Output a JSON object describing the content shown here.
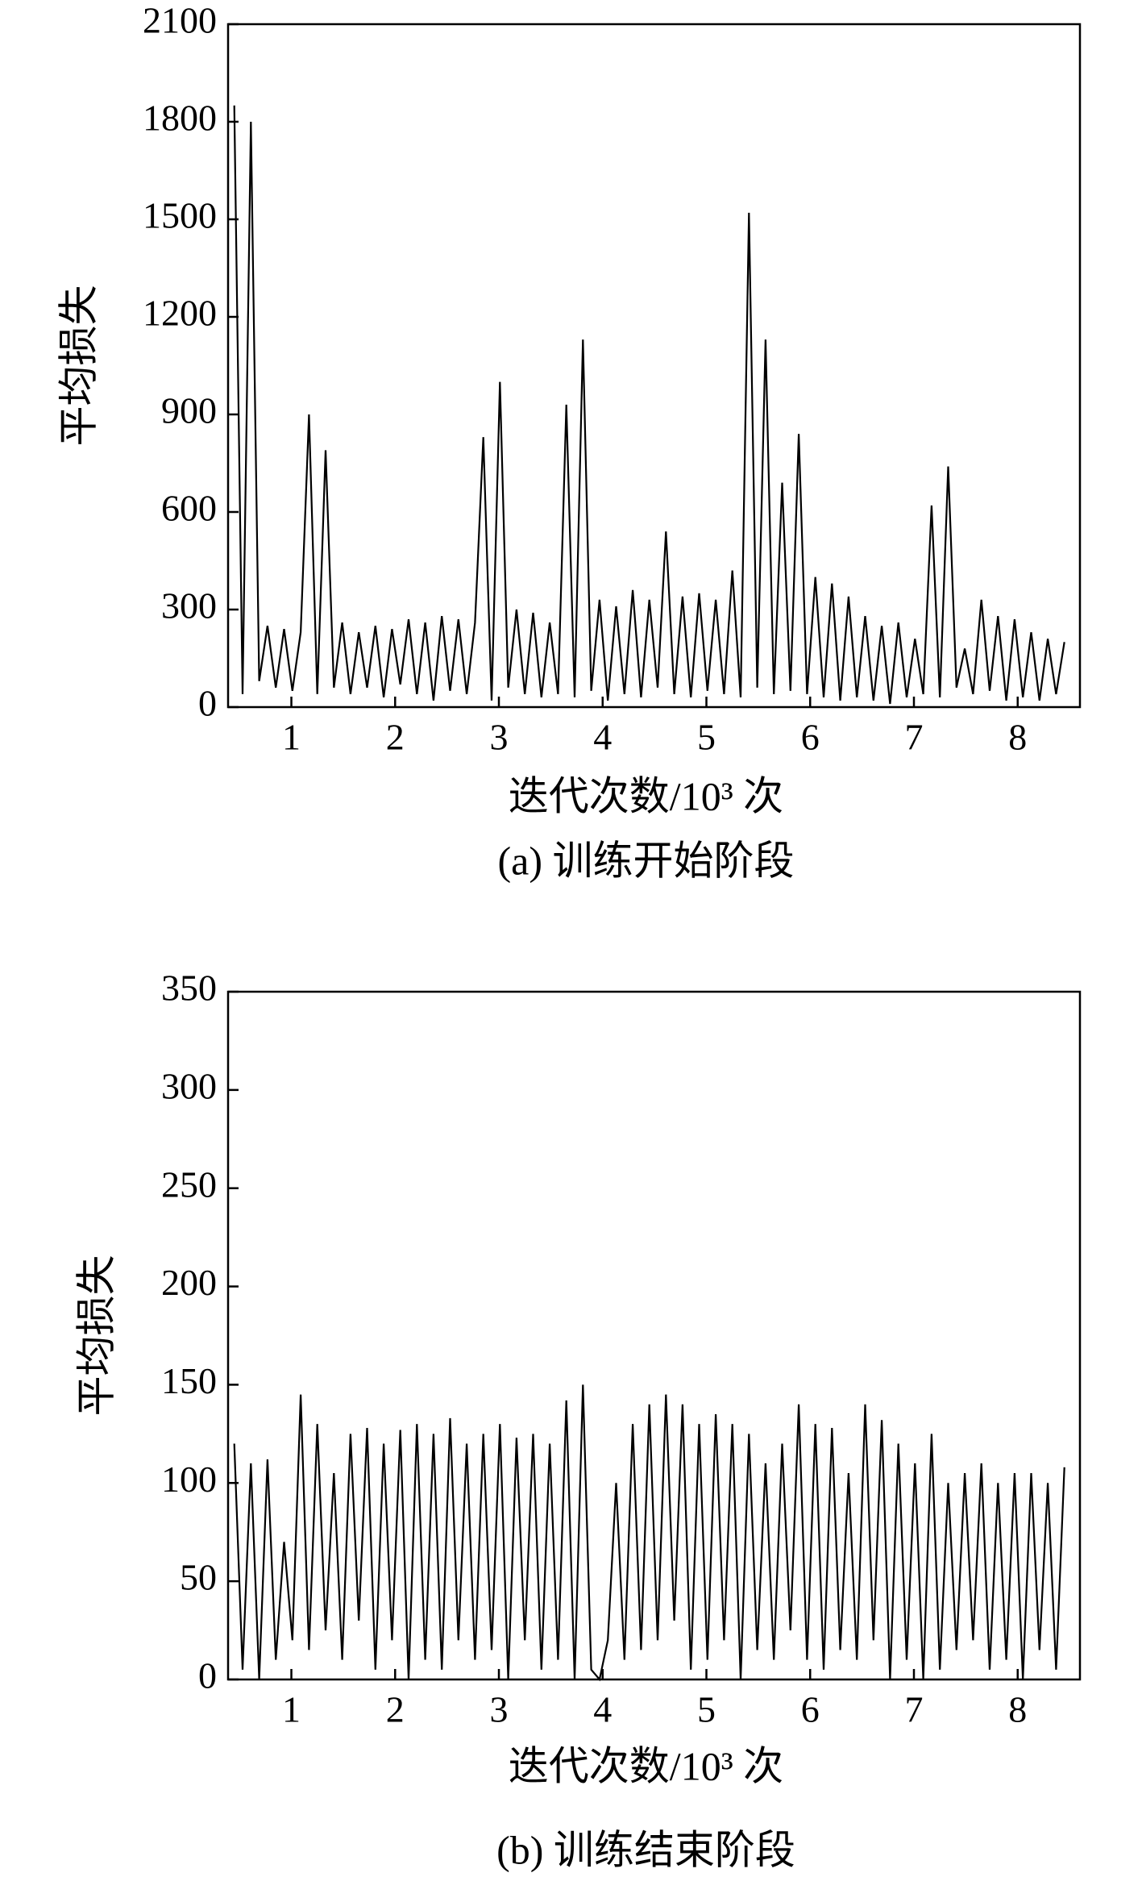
{
  "chart_data": [
    {
      "type": "line",
      "caption": "(a) 训练开始阶段",
      "xlabel": "迭代次数/10³ 次",
      "ylabel": "平均损失",
      "xlim": [
        0.39,
        8.6
      ],
      "xticks": [
        1,
        2,
        3,
        4,
        5,
        6,
        7,
        8
      ],
      "ylim": [
        0,
        2100
      ],
      "yticks": [
        0,
        300,
        600,
        900,
        1200,
        1500,
        1800,
        2100
      ],
      "series": [
        {
          "name": null,
          "color": "#000000",
          "x": [
            0.45,
            0.53,
            0.61,
            0.69,
            0.77,
            0.85,
            0.93,
            1.01,
            1.09,
            1.17,
            1.25,
            1.33,
            1.41,
            1.49,
            1.57,
            1.65,
            1.73,
            1.81,
            1.89,
            1.97,
            2.05,
            2.13,
            2.21,
            2.29,
            2.37,
            2.45,
            2.53,
            2.61,
            2.69,
            2.77,
            2.85,
            2.93,
            3.01,
            3.09,
            3.17,
            3.25,
            3.33,
            3.41,
            3.49,
            3.57,
            3.65,
            3.73,
            3.81,
            3.89,
            3.97,
            4.05,
            4.13,
            4.21,
            4.29,
            4.37,
            4.45,
            4.53,
            4.61,
            4.69,
            4.77,
            4.85,
            4.93,
            5.01,
            5.09,
            5.17,
            5.25,
            5.33,
            5.41,
            5.49,
            5.57,
            5.65,
            5.73,
            5.81,
            5.89,
            5.97,
            6.05,
            6.13,
            6.21,
            6.29,
            6.37,
            6.45,
            6.53,
            6.61,
            6.69,
            6.77,
            6.85,
            6.93,
            7.01,
            7.09,
            7.17,
            7.25,
            7.33,
            7.41,
            7.49,
            7.57,
            7.65,
            7.73,
            7.81,
            7.89,
            7.97,
            8.05,
            8.13,
            8.21,
            8.29,
            8.37,
            8.45
          ],
          "values": [
            1850,
            40,
            1800,
            80,
            250,
            60,
            240,
            50,
            230,
            900,
            40,
            790,
            60,
            260,
            40,
            230,
            60,
            250,
            30,
            240,
            70,
            270,
            40,
            260,
            20,
            280,
            50,
            270,
            40,
            260,
            830,
            20,
            1000,
            60,
            300,
            40,
            290,
            30,
            260,
            40,
            930,
            30,
            1130,
            50,
            330,
            20,
            310,
            40,
            360,
            30,
            330,
            60,
            540,
            40,
            340,
            30,
            350,
            50,
            330,
            40,
            420,
            30,
            1520,
            60,
            1130,
            40,
            690,
            50,
            840,
            40,
            400,
            30,
            380,
            20,
            340,
            30,
            280,
            20,
            250,
            10,
            260,
            30,
            210,
            40,
            620,
            30,
            740,
            60,
            180,
            40,
            330,
            50,
            280,
            20,
            270,
            30,
            230,
            20,
            210,
            40,
            200
          ]
        }
      ]
    },
    {
      "type": "line",
      "caption": "(b) 训练结束阶段",
      "xlabel": "迭代次数/10³ 次",
      "ylabel": "平均损失",
      "xlim": [
        0.39,
        8.6
      ],
      "xticks": [
        1,
        2,
        3,
        4,
        5,
        6,
        7,
        8
      ],
      "ylim": [
        0,
        350
      ],
      "yticks": [
        0,
        50,
        100,
        150,
        200,
        250,
        300,
        350
      ],
      "series": [
        {
          "name": null,
          "color": "#000000",
          "x": [
            0.45,
            0.53,
            0.61,
            0.69,
            0.77,
            0.85,
            0.93,
            1.01,
            1.09,
            1.17,
            1.25,
            1.33,
            1.41,
            1.49,
            1.57,
            1.65,
            1.73,
            1.81,
            1.89,
            1.97,
            2.05,
            2.13,
            2.21,
            2.29,
            2.37,
            2.45,
            2.53,
            2.61,
            2.69,
            2.77,
            2.85,
            2.93,
            3.01,
            3.09,
            3.17,
            3.25,
            3.33,
            3.41,
            3.49,
            3.57,
            3.65,
            3.73,
            3.81,
            3.89,
            3.97,
            4.05,
            4.13,
            4.21,
            4.29,
            4.37,
            4.45,
            4.53,
            4.61,
            4.69,
            4.77,
            4.85,
            4.93,
            5.01,
            5.09,
            5.17,
            5.25,
            5.33,
            5.41,
            5.49,
            5.57,
            5.65,
            5.73,
            5.81,
            5.89,
            5.97,
            6.05,
            6.13,
            6.21,
            6.29,
            6.37,
            6.45,
            6.53,
            6.61,
            6.69,
            6.77,
            6.85,
            6.93,
            7.01,
            7.09,
            7.17,
            7.25,
            7.33,
            7.41,
            7.49,
            7.57,
            7.65,
            7.73,
            7.81,
            7.89,
            7.97,
            8.05,
            8.13,
            8.21,
            8.29,
            8.37,
            8.45
          ],
          "values": [
            120,
            5,
            110,
            0,
            112,
            10,
            70,
            20,
            145,
            15,
            130,
            25,
            105,
            10,
            125,
            30,
            128,
            5,
            120,
            20,
            127,
            0,
            130,
            10,
            125,
            5,
            133,
            20,
            120,
            10,
            125,
            15,
            130,
            0,
            123,
            20,
            125,
            5,
            120,
            10,
            142,
            0,
            150,
            5,
            0,
            20,
            100,
            10,
            130,
            15,
            140,
            20,
            145,
            30,
            140,
            5,
            130,
            10,
            135,
            20,
            130,
            0,
            125,
            15,
            110,
            10,
            120,
            25,
            140,
            10,
            130,
            5,
            128,
            15,
            105,
            10,
            140,
            20,
            132,
            0,
            120,
            10,
            110,
            0,
            125,
            5,
            100,
            15,
            105,
            20,
            110,
            5,
            100,
            10,
            105,
            0,
            105,
            15,
            100,
            5,
            108
          ]
        }
      ]
    }
  ]
}
